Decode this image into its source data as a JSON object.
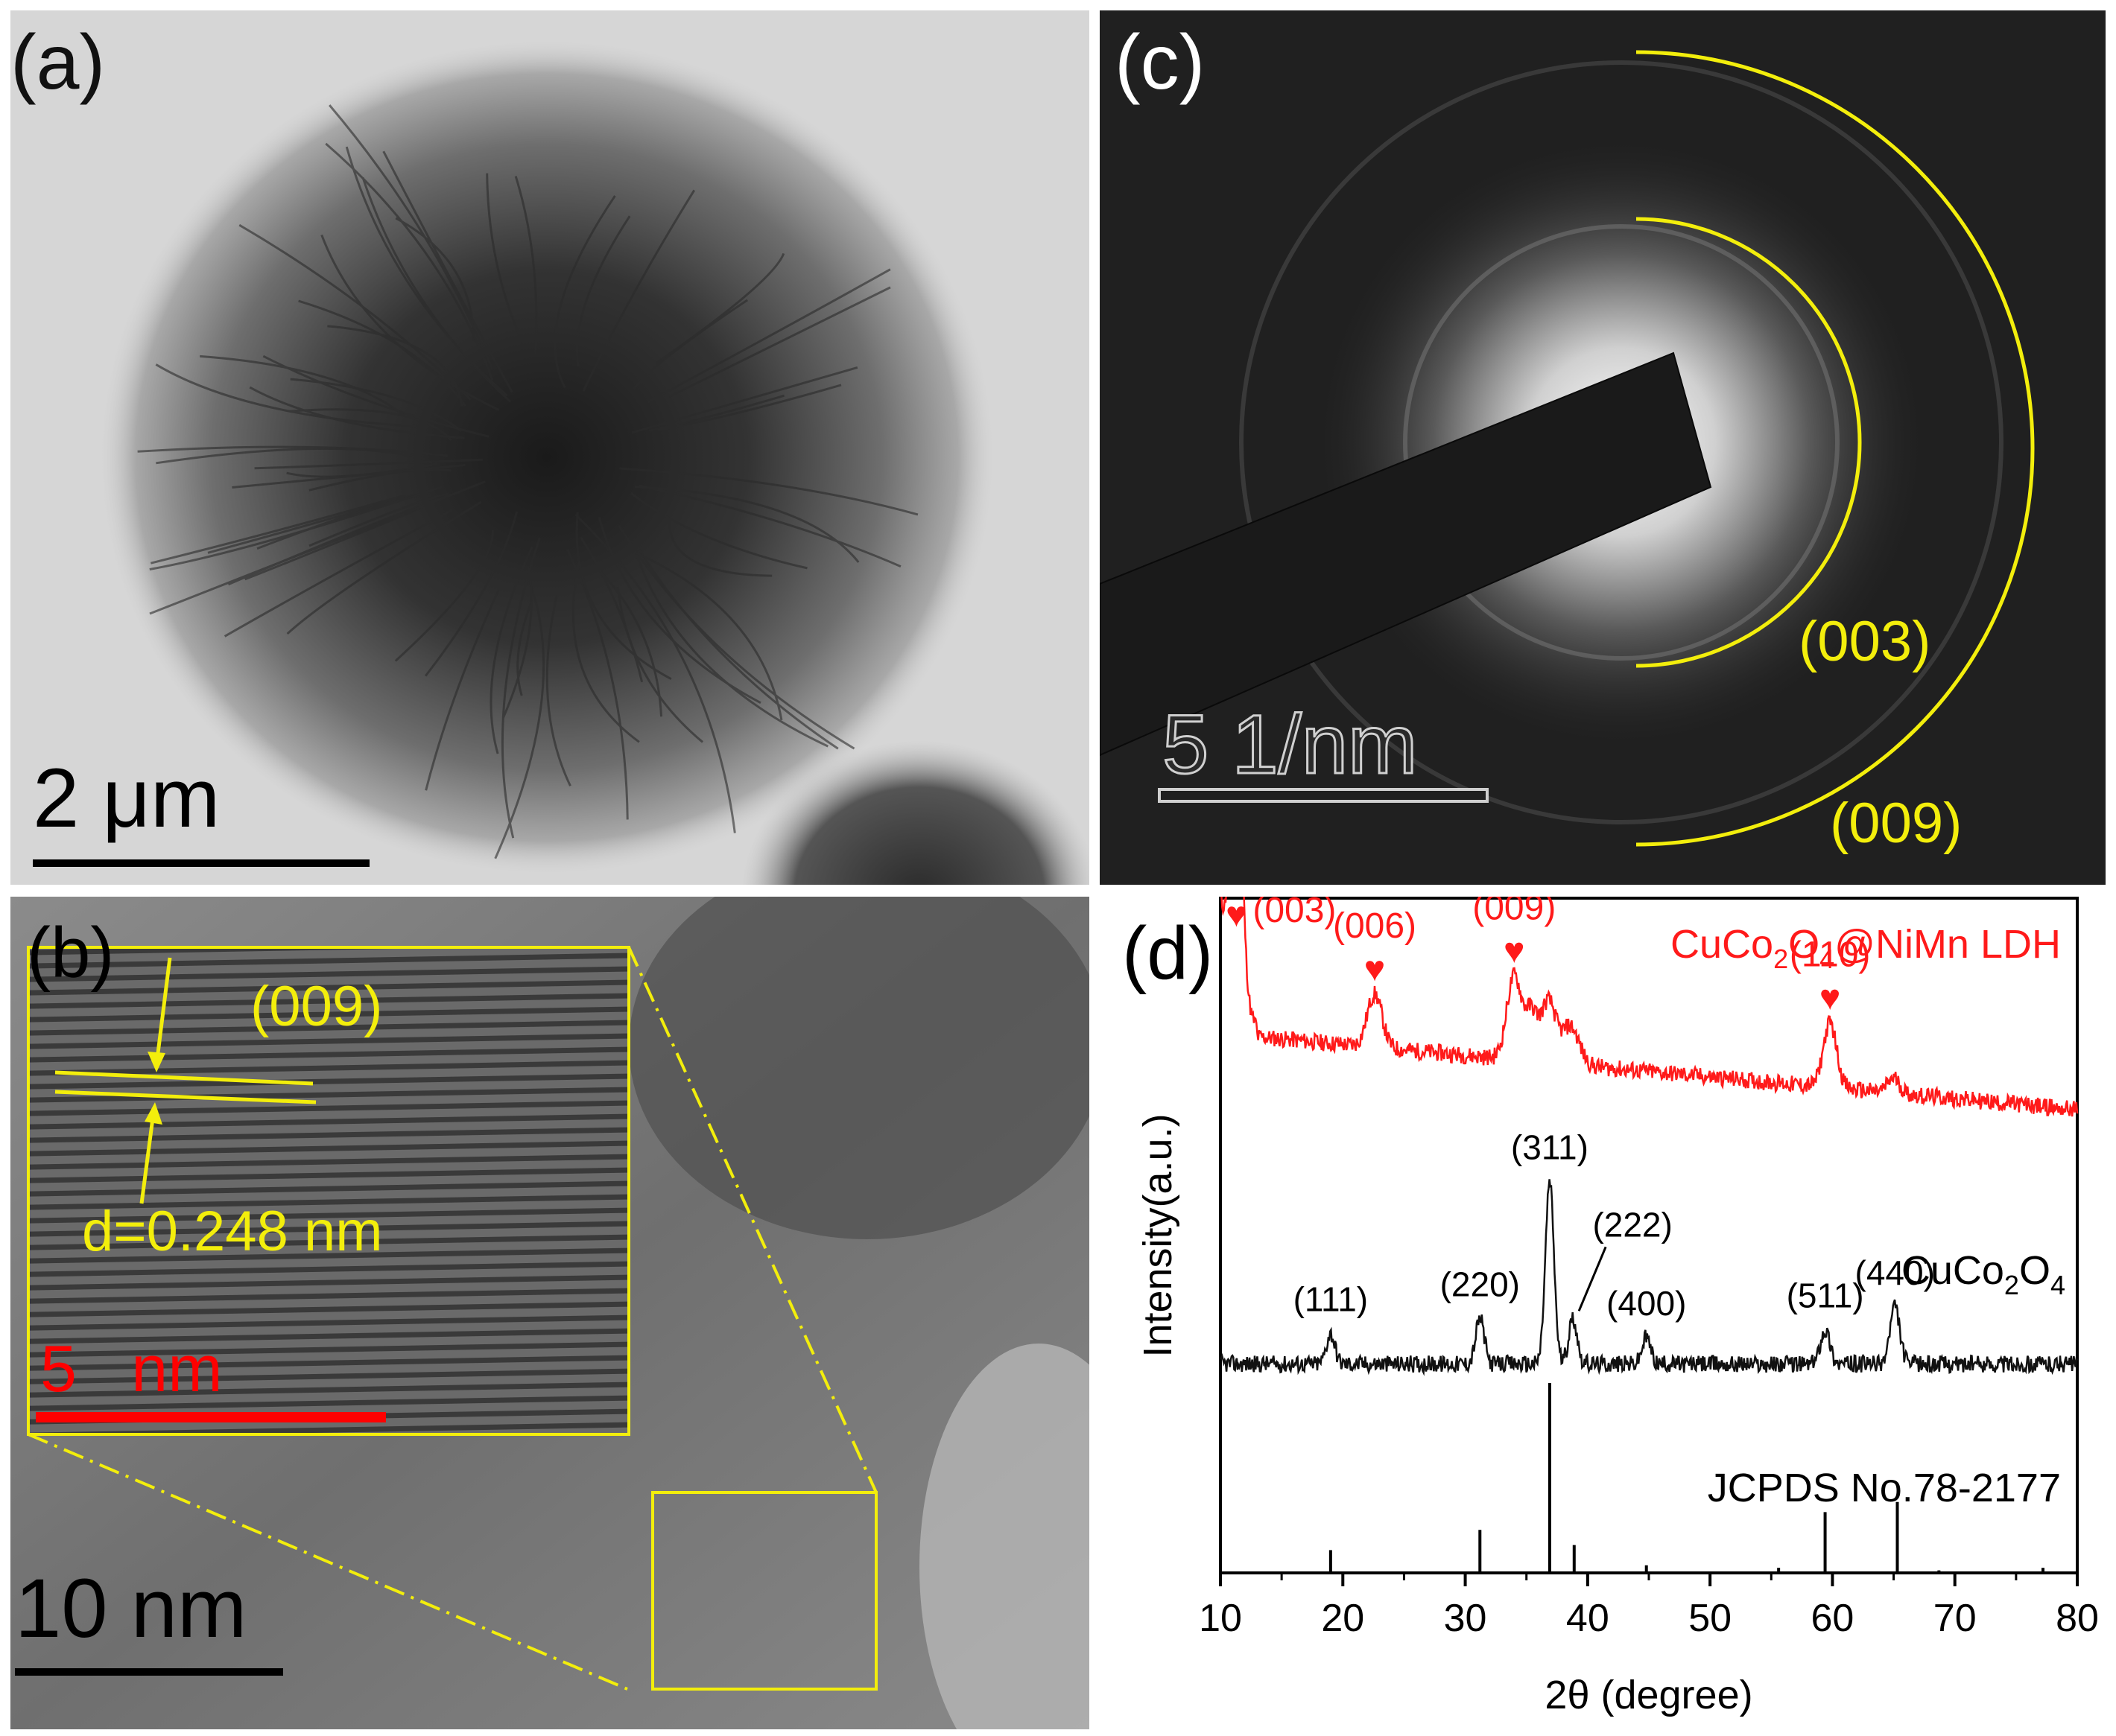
{
  "panels": {
    "a": {
      "label": "(a)",
      "scale_bar": "2 μm"
    },
    "b": {
      "label": "(b)",
      "scale_bar": "10 nm",
      "inset_scale_bar": "5   nm",
      "plane": "(009)",
      "d_spacing": "d=0.248 nm"
    },
    "c": {
      "label": "(c)",
      "scale_bar": "5 1/nm",
      "rings": [
        "(003)",
        "(009)"
      ]
    },
    "d": {
      "label": "(d)"
    }
  },
  "colors": {
    "annotation_yellow": "#f3ee0c",
    "ldh_red": "#ff1a1a",
    "cuco_black": "#111111",
    "scale_red": "#ff0000"
  },
  "chart_data": {
    "type": "line",
    "title": "",
    "xlabel": "2θ (degree)",
    "ylabel": "Intensity(a.u.)",
    "xlim": [
      10,
      80
    ],
    "xticks": [
      10,
      20,
      30,
      40,
      50,
      60,
      70,
      80
    ],
    "series": [
      {
        "name": "CuCo2O4@NiMn LDH",
        "label_main": "CuCo",
        "label_sub1": "2",
        "label_mid": "O",
        "label_sub2": "4",
        "label_tail": "@NiMn LDH",
        "color": "#ff1a1a",
        "peaks": [
          {
            "x": 11.3,
            "h": 74,
            "w": 0.45
          },
          {
            "x": 22.6,
            "h": 14,
            "w": 0.6
          },
          {
            "x": 34.0,
            "h": 22,
            "w": 0.6
          },
          {
            "x": 35.4,
            "h": 12,
            "w": 0.5
          },
          {
            "x": 36.8,
            "h": 16,
            "w": 0.6
          },
          {
            "x": 38.6,
            "h": 10,
            "w": 0.7
          },
          {
            "x": 59.8,
            "h": 17,
            "w": 0.55
          },
          {
            "x": 65.0,
            "h": 4,
            "w": 0.5
          }
        ],
        "baseline_start": 22,
        "baseline_end": 2,
        "offset": 120,
        "annotations": [
          {
            "x": 11.3,
            "label": "(003)"
          },
          {
            "x": 22.6,
            "label": "(006)"
          },
          {
            "x": 34.0,
            "label": "(009)"
          },
          {
            "x": 59.8,
            "label": "(110)"
          }
        ]
      },
      {
        "name": "CuCo2O4",
        "label_main": "CuCo",
        "label_sub1": "2",
        "label_mid": "O",
        "label_sub2": "4",
        "color": "#111111",
        "peaks": [
          {
            "x": 19.0,
            "h": 8,
            "w": 0.35
          },
          {
            "x": 31.2,
            "h": 12,
            "w": 0.35
          },
          {
            "x": 36.9,
            "h": 48,
            "w": 0.35
          },
          {
            "x": 38.8,
            "h": 12,
            "w": 0.35
          },
          {
            "x": 44.8,
            "h": 7,
            "w": 0.35
          },
          {
            "x": 59.4,
            "h": 9,
            "w": 0.4
          },
          {
            "x": 65.1,
            "h": 15,
            "w": 0.4
          }
        ],
        "baseline_start": 0,
        "baseline_end": 0,
        "offset": 55,
        "annotations": [
          {
            "x": 19.0,
            "label": "(111)"
          },
          {
            "x": 31.2,
            "label": "(220)"
          },
          {
            "x": 36.9,
            "label": "(311)"
          },
          {
            "x": 38.8,
            "label": "(222)"
          },
          {
            "x": 44.8,
            "label": "(400)"
          },
          {
            "x": 59.4,
            "label": "(511)"
          },
          {
            "x": 65.1,
            "label": "(440)"
          }
        ]
      }
    ],
    "reference": {
      "name": "JCPDS No.78-2177",
      "lines": [
        {
          "x": 19.0,
          "h": 9
        },
        {
          "x": 31.2,
          "h": 17
        },
        {
          "x": 36.9,
          "h": 75
        },
        {
          "x": 38.9,
          "h": 11
        },
        {
          "x": 44.8,
          "h": 3
        },
        {
          "x": 55.6,
          "h": 2
        },
        {
          "x": 59.4,
          "h": 24
        },
        {
          "x": 65.3,
          "h": 28
        },
        {
          "x": 68.7,
          "h": 1
        },
        {
          "x": 77.2,
          "h": 2
        }
      ]
    }
  }
}
